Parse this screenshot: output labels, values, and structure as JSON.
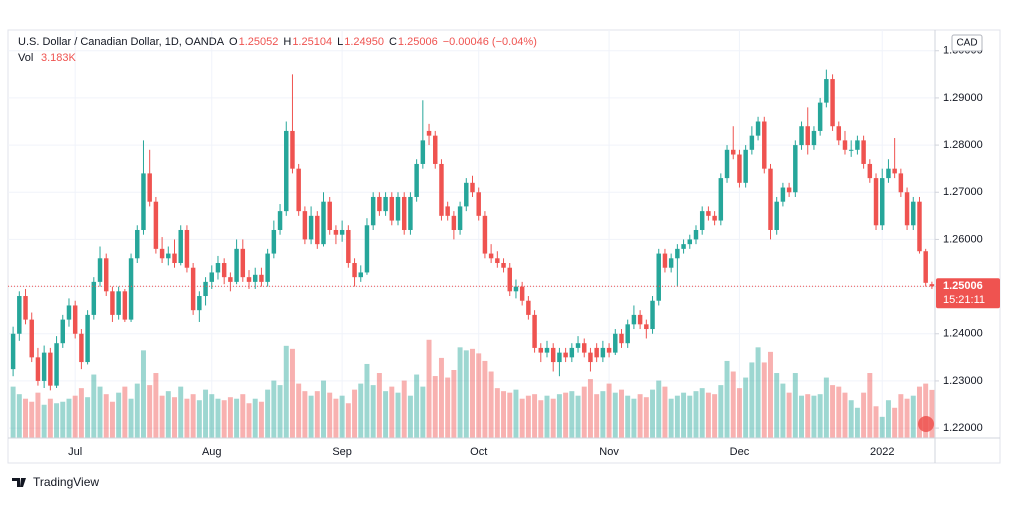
{
  "chart_data": {
    "type": "candlestick",
    "title": "U.S. Dollar / Canadian Dollar, 1D, OANDA",
    "ohlc_letters": [
      "O",
      "H",
      "L",
      "C"
    ],
    "legend_values": [
      "1.25052",
      "1.25104",
      "1.24950",
      "1.25006"
    ],
    "change": "−0.00046 (−0.04%)",
    "currency": "CAD",
    "countdown": "15:21:11",
    "up_color": "#26a69a",
    "down_color": "#ef5350",
    "grid": true,
    "last_price_line": true,
    "categories": [
      null,
      null,
      null,
      null,
      null,
      null,
      null,
      null,
      null,
      null,
      "Jul",
      null,
      null,
      null,
      null,
      null,
      null,
      null,
      null,
      null,
      null,
      null,
      null,
      null,
      null,
      null,
      null,
      null,
      null,
      null,
      null,
      null,
      "Aug",
      null,
      null,
      null,
      null,
      null,
      null,
      null,
      null,
      null,
      null,
      null,
      null,
      null,
      null,
      null,
      null,
      null,
      null,
      null,
      null,
      "Sep",
      null,
      null,
      null,
      null,
      null,
      null,
      null,
      null,
      null,
      null,
      null,
      null,
      null,
      null,
      null,
      null,
      null,
      null,
      null,
      null,
      null,
      "Oct",
      null,
      null,
      null,
      null,
      null,
      null,
      null,
      null,
      null,
      null,
      null,
      null,
      null,
      null,
      null,
      null,
      null,
      null,
      null,
      null,
      "Nov",
      null,
      null,
      null,
      null,
      null,
      null,
      null,
      null,
      null,
      null,
      null,
      null,
      null,
      null,
      null,
      null,
      null,
      null,
      null,
      null,
      "Dec",
      null,
      null,
      null,
      null,
      null,
      null,
      null,
      null,
      null,
      null,
      null,
      null,
      null,
      null,
      null,
      null,
      null,
      null,
      null,
      null,
      null,
      null,
      "2022",
      null,
      null,
      null,
      null,
      null,
      null,
      null,
      null
    ],
    "ohlc": [
      [
        1.2325,
        1.2415,
        1.231,
        1.24
      ],
      [
        1.24,
        1.249,
        1.2385,
        1.248
      ],
      [
        1.248,
        1.2495,
        1.242,
        1.243
      ],
      [
        1.243,
        1.2445,
        1.234,
        1.235
      ],
      [
        1.235,
        1.237,
        1.229,
        1.23
      ],
      [
        1.23,
        1.2375,
        1.2285,
        1.236
      ],
      [
        1.236,
        1.237,
        1.228,
        1.229
      ],
      [
        1.229,
        1.2395,
        1.2285,
        1.238
      ],
      [
        1.238,
        1.244,
        1.237,
        1.243
      ],
      [
        1.243,
        1.2475,
        1.2415,
        1.246
      ],
      [
        1.246,
        1.247,
        1.239,
        1.24
      ],
      [
        1.24,
        1.241,
        1.2325,
        1.234
      ],
      [
        1.234,
        1.245,
        1.2335,
        1.244
      ],
      [
        1.244,
        1.252,
        1.243,
        1.251
      ],
      [
        1.251,
        1.2585,
        1.25,
        1.256
      ],
      [
        1.256,
        1.257,
        1.248,
        1.249
      ],
      [
        1.249,
        1.25,
        1.2425,
        1.244
      ],
      [
        1.244,
        1.25,
        1.243,
        1.249
      ],
      [
        1.249,
        1.2495,
        1.2425,
        1.243
      ],
      [
        1.243,
        1.257,
        1.2425,
        1.256
      ],
      [
        1.256,
        1.263,
        1.255,
        1.262
      ],
      [
        1.262,
        1.281,
        1.261,
        1.274
      ],
      [
        1.274,
        1.279,
        1.267,
        1.268
      ],
      [
        1.268,
        1.269,
        1.257,
        1.258
      ],
      [
        1.258,
        1.2605,
        1.255,
        1.256
      ],
      [
        1.256,
        1.2585,
        1.2545,
        1.257
      ],
      [
        1.257,
        1.26,
        1.254,
        1.255
      ],
      [
        1.255,
        1.263,
        1.2545,
        1.262
      ],
      [
        1.262,
        1.263,
        1.253,
        1.254
      ],
      [
        1.254,
        1.255,
        1.244,
        1.245
      ],
      [
        1.245,
        1.249,
        1.2425,
        1.248
      ],
      [
        1.248,
        1.252,
        1.246,
        1.251
      ],
      [
        1.251,
        1.2545,
        1.2495,
        1.253
      ],
      [
        1.253,
        1.2565,
        1.2515,
        1.255
      ],
      [
        1.255,
        1.256,
        1.2505,
        1.252
      ],
      [
        1.252,
        1.253,
        1.249,
        1.251
      ],
      [
        1.251,
        1.26,
        1.2505,
        1.258
      ],
      [
        1.258,
        1.26,
        1.251,
        1.252
      ],
      [
        1.252,
        1.2535,
        1.2495,
        1.251
      ],
      [
        1.251,
        1.254,
        1.2495,
        1.2525
      ],
      [
        1.2525,
        1.254,
        1.25,
        1.251
      ],
      [
        1.251,
        1.258,
        1.25,
        1.257
      ],
      [
        1.257,
        1.264,
        1.256,
        1.262
      ],
      [
        1.262,
        1.2675,
        1.261,
        1.266
      ],
      [
        1.266,
        1.285,
        1.265,
        1.283
      ],
      [
        1.283,
        1.295,
        1.274,
        1.275
      ],
      [
        1.275,
        1.276,
        1.265,
        1.266
      ],
      [
        1.266,
        1.267,
        1.259,
        1.26
      ],
      [
        1.26,
        1.267,
        1.259,
        1.265
      ],
      [
        1.265,
        1.266,
        1.258,
        1.259
      ],
      [
        1.259,
        1.27,
        1.2585,
        1.268
      ],
      [
        1.268,
        1.269,
        1.261,
        1.262
      ],
      [
        1.262,
        1.263,
        1.259,
        1.261
      ],
      [
        1.261,
        1.264,
        1.2595,
        1.262
      ],
      [
        1.262,
        1.263,
        1.254,
        1.255
      ],
      [
        1.255,
        1.256,
        1.25,
        1.252
      ],
      [
        1.252,
        1.2545,
        1.251,
        1.253
      ],
      [
        1.253,
        1.2645,
        1.2525,
        1.263
      ],
      [
        1.263,
        1.27,
        1.262,
        1.269
      ],
      [
        1.269,
        1.27,
        1.265,
        1.266
      ],
      [
        1.266,
        1.27,
        1.265,
        1.269
      ],
      [
        1.269,
        1.27,
        1.263,
        1.264
      ],
      [
        1.264,
        1.27,
        1.263,
        1.269
      ],
      [
        1.269,
        1.27,
        1.261,
        1.262
      ],
      [
        1.262,
        1.27,
        1.261,
        1.269
      ],
      [
        1.269,
        1.277,
        1.268,
        1.276
      ],
      [
        1.276,
        1.2895,
        1.275,
        1.281
      ],
      [
        1.283,
        1.2845,
        1.28,
        1.282
      ],
      [
        1.282,
        1.283,
        1.275,
        1.276
      ],
      [
        1.276,
        1.277,
        1.264,
        1.265
      ],
      [
        1.267,
        1.268,
        1.264,
        1.265
      ],
      [
        1.265,
        1.266,
        1.26,
        1.262
      ],
      [
        1.262,
        1.268,
        1.261,
        1.267
      ],
      [
        1.267,
        1.273,
        1.266,
        1.272
      ],
      [
        1.272,
        1.2735,
        1.269,
        1.27
      ],
      [
        1.27,
        1.271,
        1.264,
        1.265
      ],
      [
        1.265,
        1.266,
        1.256,
        1.257
      ],
      [
        1.257,
        1.259,
        1.255,
        1.256
      ],
      [
        1.256,
        1.2575,
        1.254,
        1.255
      ],
      [
        1.255,
        1.256,
        1.253,
        1.254
      ],
      [
        1.254,
        1.255,
        1.248,
        1.249
      ],
      [
        1.249,
        1.2515,
        1.2475,
        1.25
      ],
      [
        1.25,
        1.251,
        1.246,
        1.247
      ],
      [
        1.247,
        1.248,
        1.243,
        1.244
      ],
      [
        1.244,
        1.245,
        1.236,
        1.237
      ],
      [
        1.237,
        1.238,
        1.234,
        1.236
      ],
      [
        1.236,
        1.2385,
        1.235,
        1.237
      ],
      [
        1.237,
        1.238,
        1.232,
        1.234
      ],
      [
        1.234,
        1.237,
        1.231,
        1.236
      ],
      [
        1.236,
        1.237,
        1.234,
        1.235
      ],
      [
        1.235,
        1.238,
        1.234,
        1.237
      ],
      [
        1.237,
        1.2395,
        1.236,
        1.238
      ],
      [
        1.238,
        1.239,
        1.235,
        1.236
      ],
      [
        1.236,
        1.237,
        1.232,
        1.234
      ],
      [
        1.237,
        1.238,
        1.234,
        1.235
      ],
      [
        1.235,
        1.2385,
        1.234,
        1.237
      ],
      [
        1.237,
        1.238,
        1.235,
        1.236
      ],
      [
        1.236,
        1.241,
        1.2355,
        1.24
      ],
      [
        1.24,
        1.241,
        1.237,
        1.238
      ],
      [
        1.238,
        1.243,
        1.237,
        1.242
      ],
      [
        1.242,
        1.246,
        1.241,
        1.244
      ],
      [
        1.244,
        1.245,
        1.241,
        1.242
      ],
      [
        1.242,
        1.243,
        1.239,
        1.241
      ],
      [
        1.241,
        1.248,
        1.24,
        1.247
      ],
      [
        1.247,
        1.258,
        1.246,
        1.257
      ],
      [
        1.257,
        1.258,
        1.253,
        1.254
      ],
      [
        1.254,
        1.257,
        1.253,
        1.256
      ],
      [
        1.256,
        1.259,
        1.25,
        1.258
      ],
      [
        1.258,
        1.26,
        1.257,
        1.259
      ],
      [
        1.259,
        1.261,
        1.258,
        1.26
      ],
      [
        1.26,
        1.263,
        1.259,
        1.262
      ],
      [
        1.262,
        1.267,
        1.261,
        1.266
      ],
      [
        1.266,
        1.267,
        1.264,
        1.265
      ],
      [
        1.265,
        1.266,
        1.263,
        1.264
      ],
      [
        1.264,
        1.274,
        1.263,
        1.273
      ],
      [
        1.273,
        1.28,
        1.272,
        1.279
      ],
      [
        1.279,
        1.284,
        1.277,
        1.278
      ],
      [
        1.278,
        1.279,
        1.271,
        1.272
      ],
      [
        1.272,
        1.28,
        1.271,
        1.279
      ],
      [
        1.279,
        1.284,
        1.278,
        1.282
      ],
      [
        1.282,
        1.286,
        1.281,
        1.285
      ],
      [
        1.285,
        1.286,
        1.274,
        1.275
      ],
      [
        1.275,
        1.276,
        1.26,
        1.262
      ],
      [
        1.262,
        1.269,
        1.261,
        1.268
      ],
      [
        1.268,
        1.272,
        1.267,
        1.271
      ],
      [
        1.271,
        1.272,
        1.269,
        1.27
      ],
      [
        1.27,
        1.281,
        1.269,
        1.28
      ],
      [
        1.28,
        1.285,
        1.279,
        1.284
      ],
      [
        1.284,
        1.288,
        1.278,
        1.28
      ],
      [
        1.28,
        1.284,
        1.279,
        1.283
      ],
      [
        1.283,
        1.29,
        1.282,
        1.289
      ],
      [
        1.289,
        1.296,
        1.288,
        1.294
      ],
      [
        1.294,
        1.295,
        1.283,
        1.284
      ],
      [
        1.284,
        1.285,
        1.28,
        1.281
      ],
      [
        1.281,
        1.283,
        1.278,
        1.279
      ],
      [
        1.279,
        1.281,
        1.2775,
        1.279
      ],
      [
        1.279,
        1.282,
        1.278,
        1.281
      ],
      [
        1.281,
        1.282,
        1.275,
        1.276
      ],
      [
        1.276,
        1.277,
        1.272,
        1.273
      ],
      [
        1.273,
        1.274,
        1.262,
        1.263
      ],
      [
        1.263,
        1.275,
        1.262,
        1.273
      ],
      [
        1.273,
        1.277,
        1.272,
        1.275
      ],
      [
        1.275,
        1.2815,
        1.273,
        1.274
      ],
      [
        1.274,
        1.275,
        1.269,
        1.27
      ],
      [
        1.27,
        1.271,
        1.262,
        1.263
      ],
      [
        1.263,
        1.269,
        1.262,
        1.268
      ],
      [
        1.268,
        1.269,
        1.257,
        1.2575
      ],
      [
        1.2575,
        1.258,
        1.25,
        1.2508
      ],
      [
        1.25052,
        1.25104,
        1.2495,
        1.25006
      ]
    ],
    "volume": {
      "name": "Vol",
      "axis": "y2",
      "last_value_label": "3.183K",
      "values": [
        3.4,
        2.9,
        2.6,
        2.4,
        3.0,
        2.2,
        2.6,
        2.3,
        2.4,
        2.6,
        2.8,
        3.3,
        2.7,
        4.2,
        3.4,
        2.9,
        2.4,
        3.0,
        3.4,
        2.6,
        3.6,
        5.8,
        3.5,
        4.3,
        2.8,
        3.1,
        2.7,
        3.4,
        2.6,
        2.9,
        2.5,
        3.2,
        2.9,
        2.6,
        2.5,
        2.7,
        2.6,
        2.9,
        2.3,
        2.6,
        2.4,
        3.2,
        3.8,
        3.5,
        6.1,
        5.9,
        3.6,
        3.1,
        2.8,
        3.1,
        3.8,
        3.0,
        2.6,
        2.8,
        2.3,
        3.2,
        3.6,
        4.9,
        3.5,
        4.3,
        3.1,
        3.4,
        3.0,
        3.8,
        2.8,
        4.2,
        3.4,
        6.5,
        4.1,
        5.3,
        4.0,
        4.5,
        6.0,
        5.8,
        5.9,
        5.6,
        5.1,
        4.4,
        3.3,
        3.1,
        3.0,
        3.2,
        2.6,
        2.8,
        2.9,
        2.5,
        2.8,
        2.6,
        2.9,
        3.0,
        3.1,
        2.8,
        3.4,
        3.9,
        2.9,
        3.1,
        3.6,
        3.0,
        3.2,
        2.8,
        2.6,
        2.9,
        2.7,
        3.2,
        3.8,
        3.4,
        2.6,
        2.8,
        3.0,
        2.8,
        3.1,
        3.3,
        3.0,
        2.9,
        3.5,
        5.1,
        4.4,
        3.3,
        4.0,
        5.0,
        6.0,
        5.0,
        5.7,
        4.3,
        3.6,
        3.0,
        4.3,
        2.8,
        2.9,
        2.8,
        2.9,
        4.0,
        3.5,
        3.4,
        3.0,
        2.5,
        2.0,
        3.0,
        4.3,
        2.1,
        1.4,
        2.5,
        2.0,
        2.9,
        2.6,
        2.8,
        3.4,
        3.6,
        3.183
      ]
    },
    "ylim": [
      1.2179,
      1.3044
    ],
    "yticks": [
      {
        "value": 1.22,
        "label": "1.22000"
      },
      {
        "value": 1.23,
        "label": "1.23000"
      },
      {
        "value": 1.24,
        "label": "1.24000"
      },
      {
        "value": 1.25,
        "label": "1.25000"
      },
      {
        "value": 1.26,
        "label": "1.26000"
      },
      {
        "value": 1.27,
        "label": "1.27000"
      },
      {
        "value": 1.28,
        "label": "1.28000"
      },
      {
        "value": 1.29,
        "label": "1.29000"
      },
      {
        "value": 1.3,
        "label": "1.30000"
      }
    ],
    "y2lim": [
      0,
      27
    ]
  },
  "footer": {
    "brand": "TradingView"
  }
}
